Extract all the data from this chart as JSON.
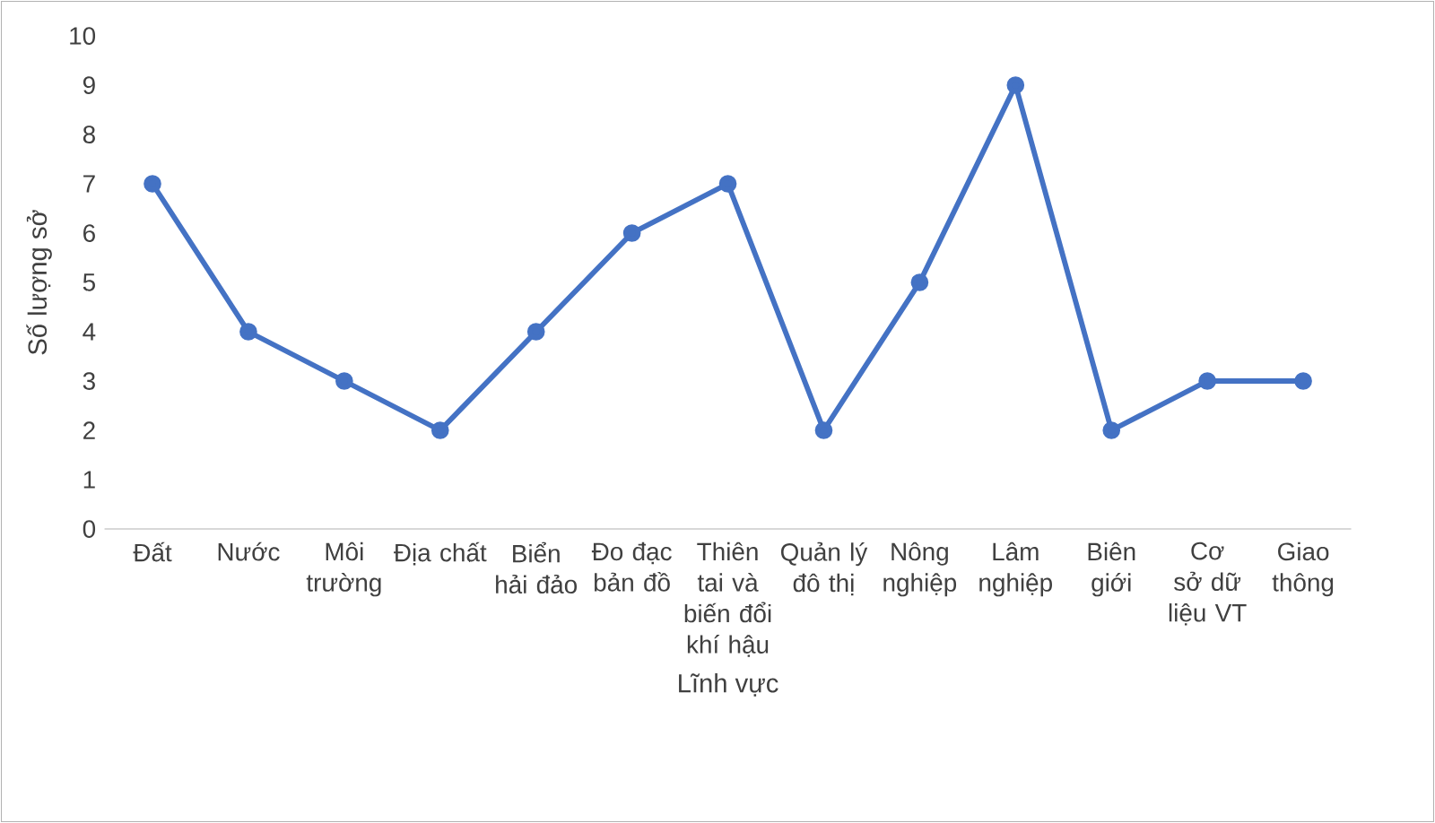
{
  "chart_data": {
    "type": "line",
    "xlabel": "Lĩnh vực",
    "ylabel": "Số lượng sở",
    "categories": [
      "Đất",
      "Nước",
      "Môi trường",
      "Địa chất",
      "Biển hải đảo",
      "Đo đạc bản đồ",
      "Thiên tai và biến đổi khí hậu",
      "Quản lý đô thị",
      "Nông nghiệp",
      "Lâm nghiệp",
      "Biên giới",
      "Cơ sở dữ liệu VT",
      "Giao thông"
    ],
    "series": [
      {
        "color": "#4472c4",
        "values": [
          7,
          4,
          3,
          2,
          4,
          6,
          7,
          2,
          5,
          9,
          2,
          3,
          3
        ]
      }
    ],
    "ylim": [
      0,
      10
    ],
    "yticks": [
      0,
      1,
      2,
      3,
      4,
      5,
      6,
      7,
      8,
      9,
      10
    ],
    "grid": false,
    "marker": "circle",
    "line_style": "solid"
  }
}
